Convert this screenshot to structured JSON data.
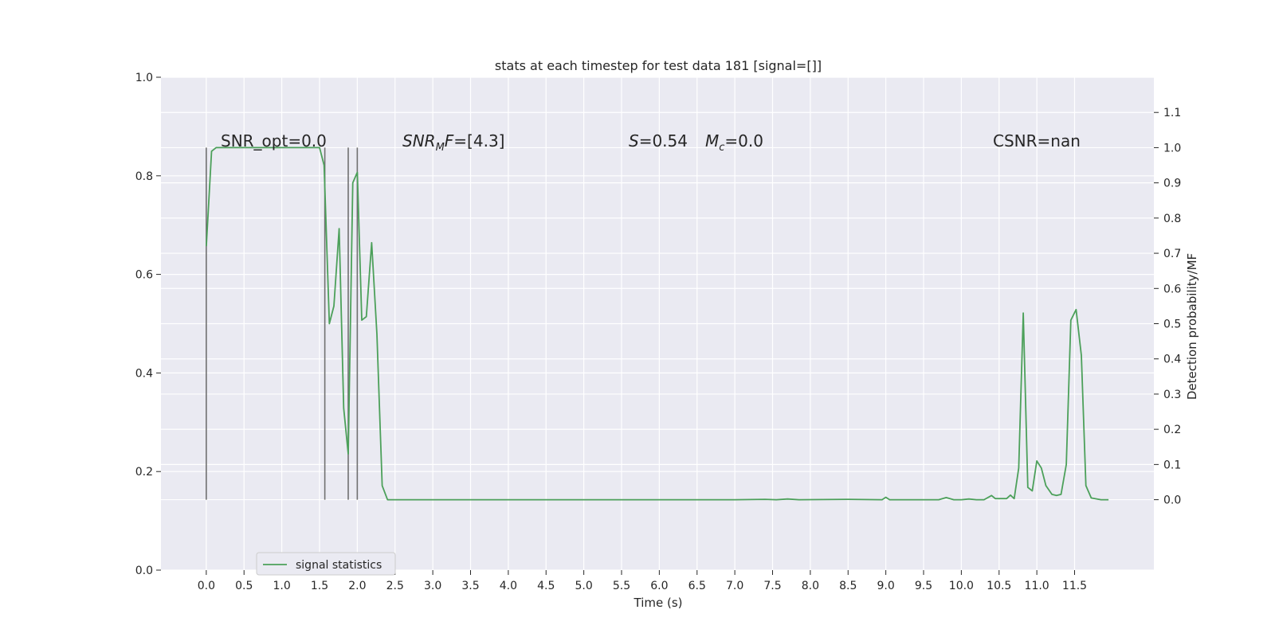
{
  "chart_data": {
    "type": "line",
    "title": "stats at each timestep for test data 181 [signal=[]]",
    "xlabel": "Time (s)",
    "ylabel_left": "",
    "ylabel_right": "Detection probability/MF",
    "xlim": [
      -0.6,
      12.55
    ],
    "ylim_left": [
      0.0,
      1.0
    ],
    "ylim_right": [
      -0.2,
      1.2
    ],
    "x_ticks": [
      "0.0",
      "0.5",
      "1.0",
      "1.5",
      "2.0",
      "2.5",
      "3.0",
      "3.5",
      "4.0",
      "4.5",
      "5.0",
      "5.5",
      "6.0",
      "6.5",
      "7.0",
      "7.5",
      "8.0",
      "8.5",
      "9.0",
      "9.5",
      "10.0",
      "10.5",
      "11.0",
      "11.5"
    ],
    "y_ticks_left": [
      "0.0",
      "0.2",
      "0.4",
      "0.6",
      "0.8",
      "1.0"
    ],
    "y_ticks_right": [
      "0.0",
      "0.1",
      "0.2",
      "0.3",
      "0.4",
      "0.5",
      "0.6",
      "0.7",
      "0.8",
      "0.9",
      "1.0",
      "1.1"
    ],
    "grid": true,
    "legend_position": "lower-left",
    "series": [
      {
        "name": "signal statistics",
        "color": "#4ca05a",
        "axis": "right",
        "x": [
          0.0,
          0.07,
          0.13,
          0.2,
          0.3,
          0.4,
          0.5,
          0.6,
          0.7,
          0.8,
          0.9,
          1.0,
          1.1,
          1.2,
          1.3,
          1.4,
          1.5,
          1.56,
          1.63,
          1.69,
          1.76,
          1.82,
          1.88,
          1.94,
          2.0,
          2.06,
          2.12,
          2.19,
          2.26,
          2.33,
          2.4,
          2.5,
          3.0,
          4.0,
          5.0,
          6.0,
          7.0,
          7.4,
          7.55,
          7.7,
          7.85,
          8.5,
          8.95,
          9.0,
          9.05,
          9.5,
          9.7,
          9.8,
          9.9,
          10.0,
          10.1,
          10.2,
          10.3,
          10.4,
          10.45,
          10.6,
          10.65,
          10.7,
          10.76,
          10.82,
          10.88,
          10.94,
          11.0,
          11.06,
          11.12,
          11.2,
          11.26,
          11.32,
          11.39,
          11.45,
          11.52,
          11.59,
          11.65,
          11.72,
          11.85,
          11.95
        ],
        "values": [
          0.72,
          0.99,
          1.0,
          1.0,
          1.0,
          1.0,
          1.0,
          1.0,
          1.0,
          1.0,
          1.0,
          1.0,
          1.0,
          1.0,
          1.0,
          1.0,
          1.0,
          0.95,
          0.5,
          0.55,
          0.77,
          0.26,
          0.13,
          0.9,
          0.93,
          0.51,
          0.52,
          0.73,
          0.47,
          0.04,
          0.0,
          0.0,
          0.0,
          0.0,
          0.0,
          0.0,
          0.0,
          0.001,
          0.0,
          0.002,
          0.0,
          0.001,
          0.0,
          0.007,
          0.0,
          0.0,
          0.0,
          0.006,
          0.0,
          0.0,
          0.002,
          0.0,
          0.0,
          0.012,
          0.003,
          0.003,
          0.013,
          0.003,
          0.09,
          0.53,
          0.035,
          0.025,
          0.11,
          0.09,
          0.04,
          0.015,
          0.012,
          0.015,
          0.1,
          0.51,
          0.54,
          0.41,
          0.04,
          0.005,
          0.0,
          0.0
        ]
      }
    ],
    "vlines": [
      0.0,
      1.57,
      1.88,
      2.0
    ],
    "vline_range": [
      0.0,
      1.0
    ],
    "vline_color": "#707070",
    "annotations": {
      "snr_opt": "SNR_opt=0.0",
      "snr_mf": "=[4.3]",
      "s_label": "=0.54",
      "mc_label": "=0.0",
      "csnr": "CSNR=nan"
    },
    "colors": {
      "plot_bg": "#eaeaf2",
      "grid": "#ffffff",
      "page_bg": "#ffffff"
    }
  }
}
